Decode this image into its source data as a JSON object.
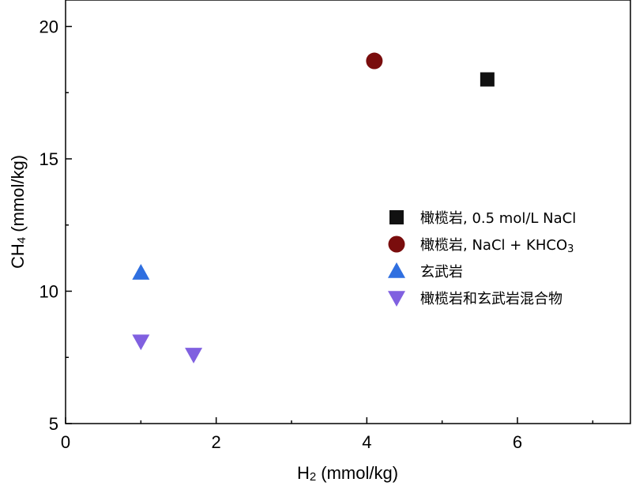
{
  "chart_data": {
    "type": "scatter",
    "xlabel": "H2 (mmol/kg)",
    "ylabel": "CH4 (mmol/kg)",
    "xlim": [
      0,
      7.5
    ],
    "ylim": [
      5,
      21
    ],
    "xticks": [
      0,
      2,
      4,
      6
    ],
    "yticks": [
      5,
      10,
      15,
      20
    ],
    "grid": false,
    "legend_position": "right",
    "series": [
      {
        "name": "橄榄岩, 0.5 mol/L NaCl",
        "marker": "square",
        "color": "#111111",
        "points": [
          {
            "x": 5.6,
            "y": 18.0
          }
        ]
      },
      {
        "name": "橄榄岩, NaCl + KHCO3",
        "marker": "circle",
        "color": "#7a0d0d",
        "points": [
          {
            "x": 4.1,
            "y": 18.7
          }
        ]
      },
      {
        "name": "玄武岩",
        "marker": "triangle-up",
        "color": "#2f6fe0",
        "points": [
          {
            "x": 1.0,
            "y": 10.7
          }
        ]
      },
      {
        "name": "橄榄岩和玄武岩混合物",
        "marker": "triangle-down",
        "color": "#8060e0",
        "points": [
          {
            "x": 1.0,
            "y": 8.1
          },
          {
            "x": 1.7,
            "y": 7.6
          }
        ]
      }
    ]
  }
}
